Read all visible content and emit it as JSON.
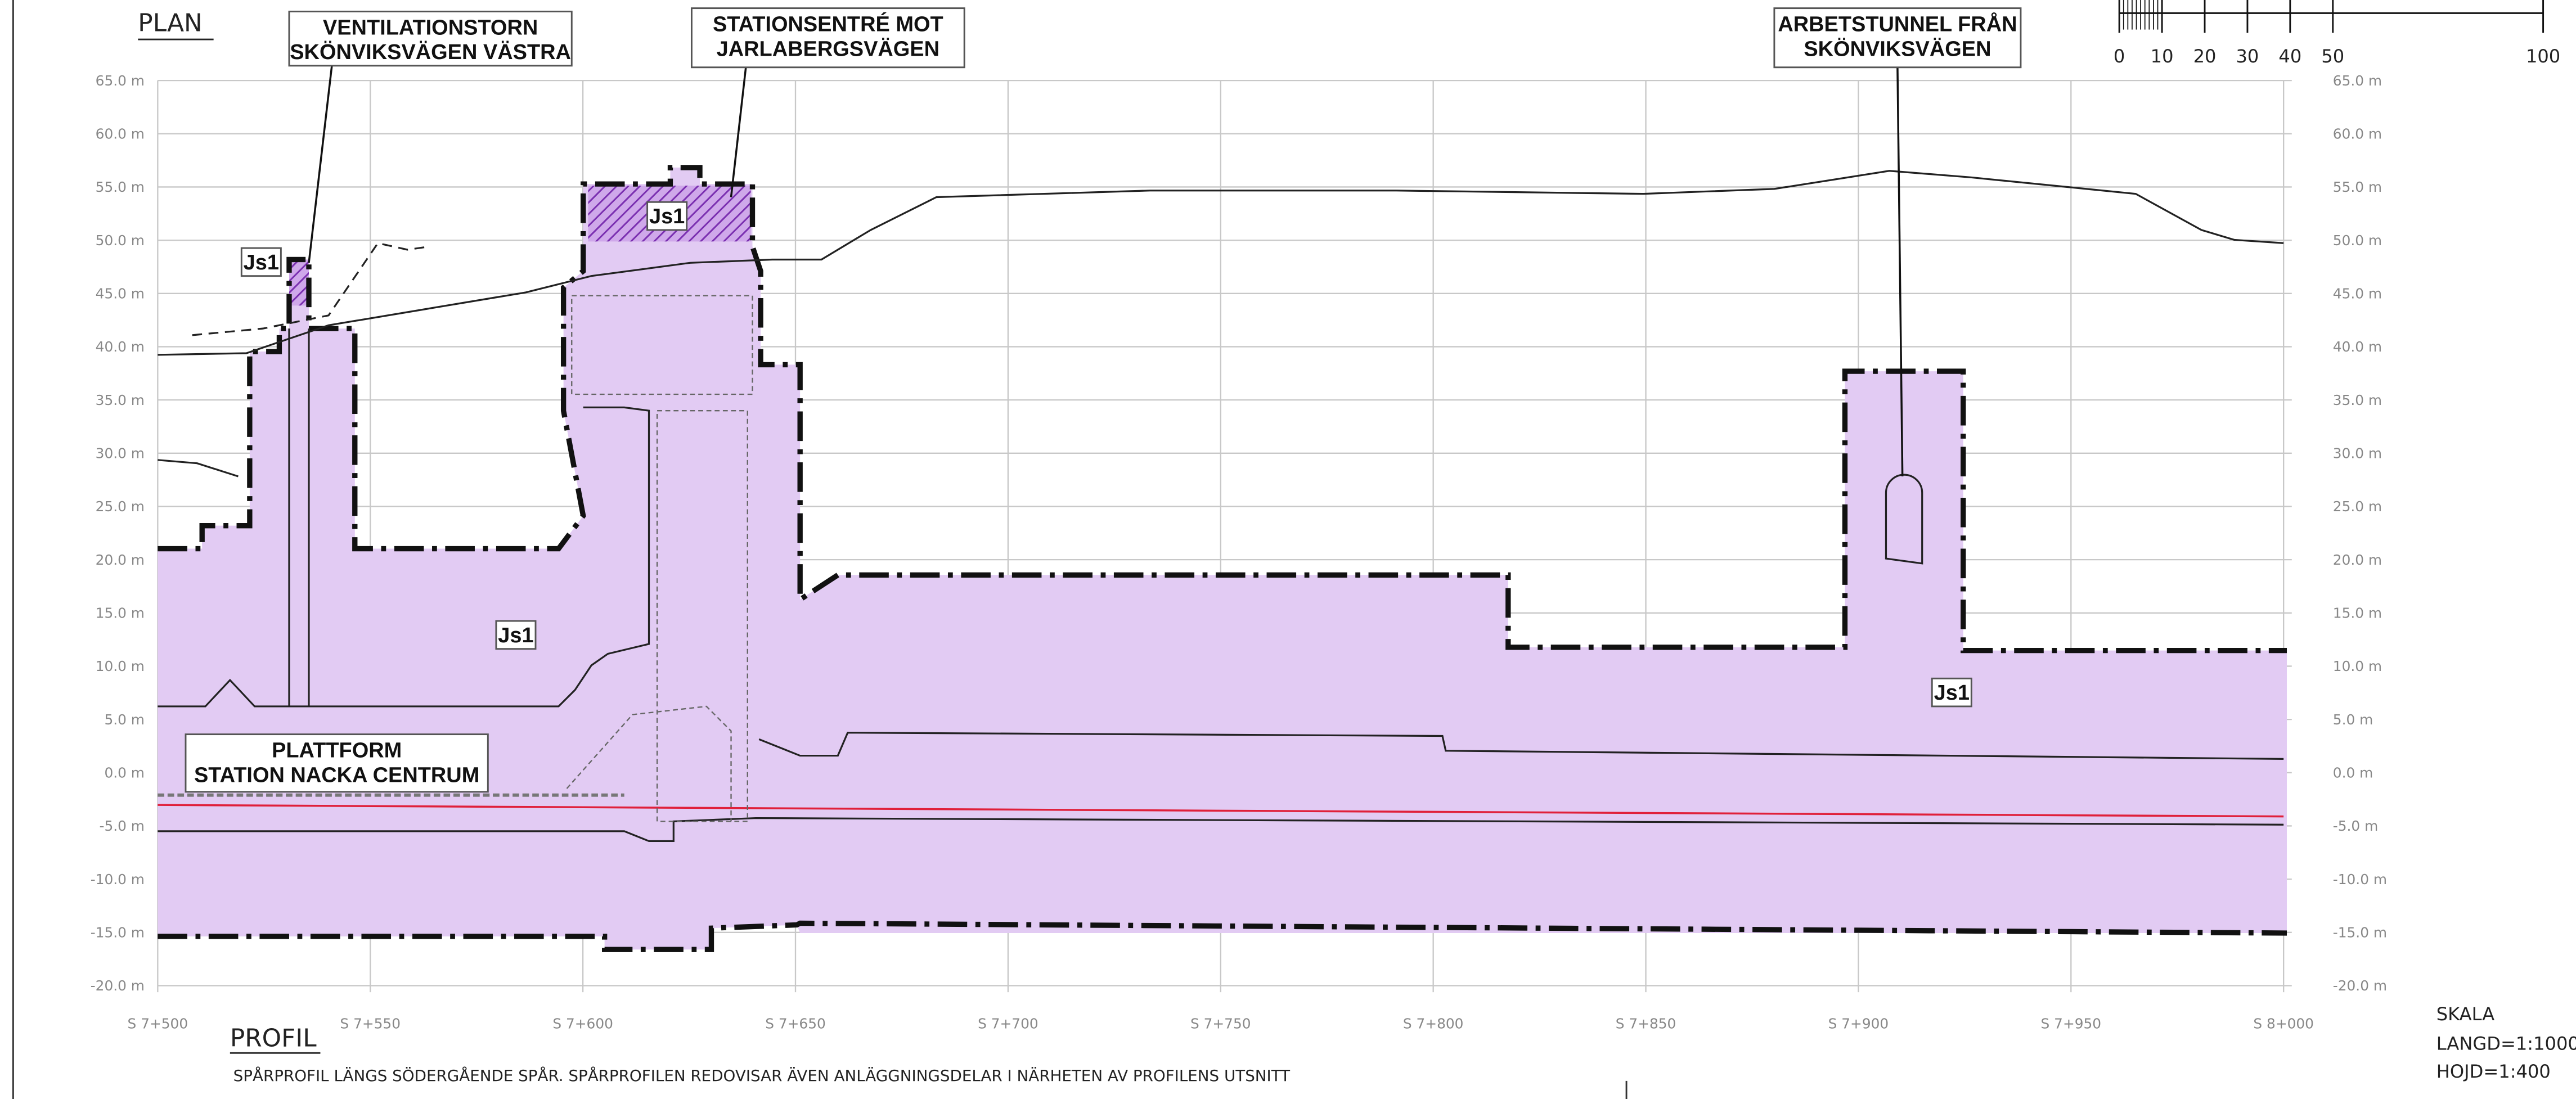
{
  "header": {
    "plan": "PLAN",
    "profil": "PROFIL",
    "caption": "SPÅRPROFIL LÄNGS SÖDERGÅENDE SPÅR. SPÅRPROFILEN REDOVISAR ÄVEN ANLÄGGNINGSDELAR I NÄRHETEN AV PROFILENS UTSNITT"
  },
  "callouts": [
    {
      "lines": [
        "VENTILATIONSTORN",
        "SKÖNVIKSVÄGEN VÄSTRA"
      ]
    },
    {
      "lines": [
        "STATIONSENTRÉ MOT",
        "JARLABERGSVÄGEN"
      ]
    },
    {
      "lines": [
        "ARBETSTUNNEL FRÅN",
        "SKÖNVIKSVÄGEN"
      ]
    }
  ],
  "platform": {
    "lines": [
      "PLATTFORM",
      "STATION NACKA CENTRUM"
    ]
  },
  "zone_labels": [
    "Js1",
    "Js1",
    "Js1",
    "Js1"
  ],
  "elevation_labels": [
    "65.0 m",
    "60.0 m",
    "55.0 m",
    "50.0 m",
    "45.0 m",
    "40.0 m",
    "35.0 m",
    "30.0 m",
    "25.0 m",
    "20.0 m",
    "15.0 m",
    "10.0 m",
    "5.0 m",
    "0.0 m",
    "-5.0 m",
    "-10.0 m",
    "-15.0 m",
    "-20.0 m"
  ],
  "chainage_labels": [
    "S 7+500",
    "S 7+550",
    "S 7+600",
    "S 7+650",
    "S 7+700",
    "S 7+750",
    "S 7+800",
    "S 7+850",
    "S 7+900",
    "S 7+950",
    "S 8+000"
  ],
  "scale_bar": {
    "labels": [
      "0",
      "10",
      "20",
      "30",
      "40",
      "50",
      "100"
    ]
  },
  "scale": {
    "title": "SKALA",
    "length": "LANGD=1:1000",
    "height": "HOJD=1:400"
  }
}
